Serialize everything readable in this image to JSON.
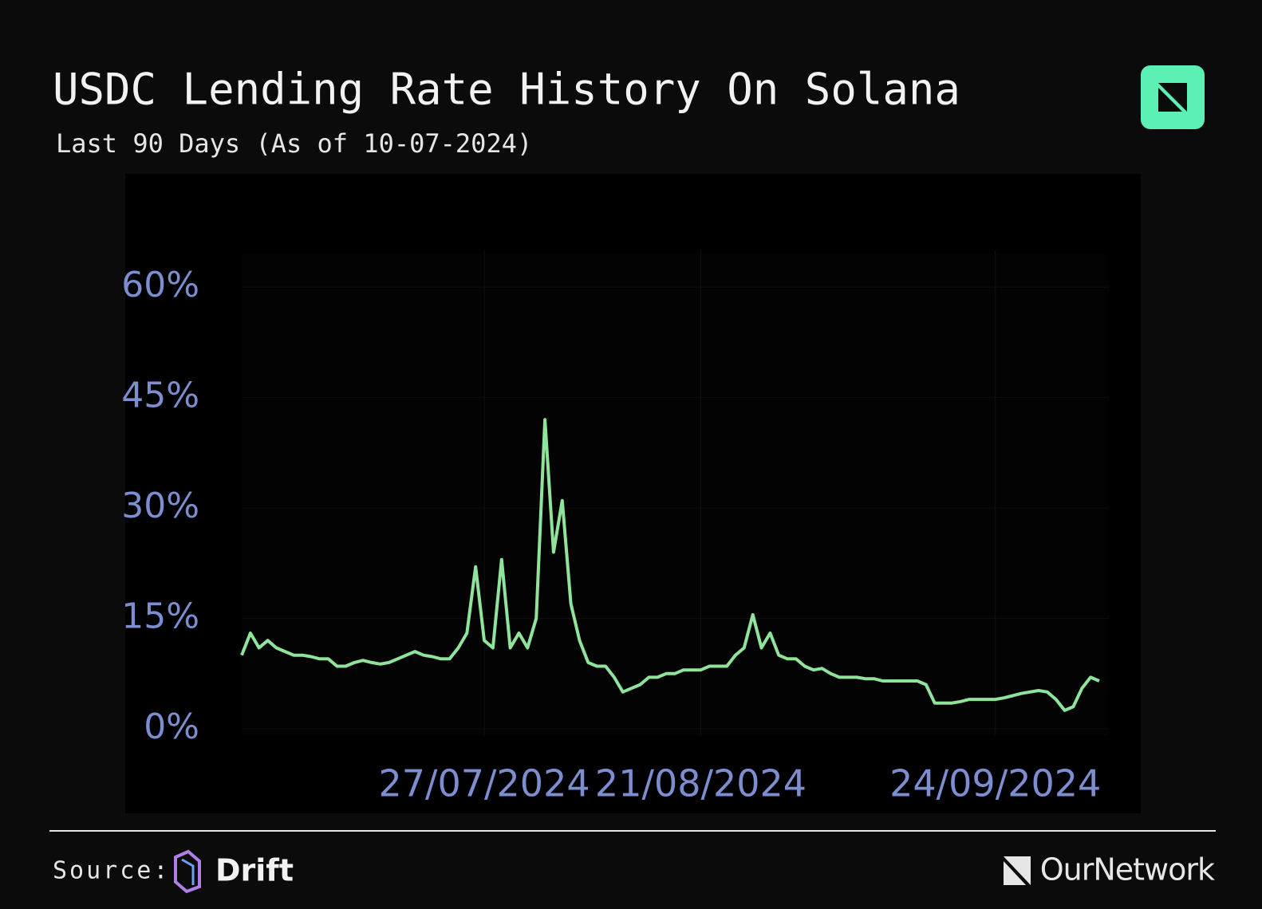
{
  "chart_data": {
    "type": "line",
    "title": "USDC Lending Rate History On Solana",
    "subtitle": "Last 90 Days (As of 10-07-2024)",
    "x": [
      "2024-06-29",
      "2024-06-30",
      "2024-07-01",
      "2024-07-02",
      "2024-07-03",
      "2024-07-04",
      "2024-07-05",
      "2024-07-06",
      "2024-07-07",
      "2024-07-08",
      "2024-07-09",
      "2024-07-10",
      "2024-07-11",
      "2024-07-12",
      "2024-07-13",
      "2024-07-14",
      "2024-07-15",
      "2024-07-16",
      "2024-07-17",
      "2024-07-18",
      "2024-07-19",
      "2024-07-20",
      "2024-07-21",
      "2024-07-22",
      "2024-07-23",
      "2024-07-24",
      "2024-07-25",
      "2024-07-26",
      "2024-07-27",
      "2024-07-28",
      "2024-07-29",
      "2024-07-30",
      "2024-07-31",
      "2024-08-01",
      "2024-08-02",
      "2024-08-03",
      "2024-08-04",
      "2024-08-05",
      "2024-08-06",
      "2024-08-07",
      "2024-08-08",
      "2024-08-09",
      "2024-08-10",
      "2024-08-11",
      "2024-08-12",
      "2024-08-13",
      "2024-08-14",
      "2024-08-15",
      "2024-08-16",
      "2024-08-17",
      "2024-08-18",
      "2024-08-19",
      "2024-08-20",
      "2024-08-21",
      "2024-08-22",
      "2024-08-23",
      "2024-08-24",
      "2024-08-25",
      "2024-08-26",
      "2024-08-27",
      "2024-08-28",
      "2024-08-29",
      "2024-08-30",
      "2024-08-31",
      "2024-09-01",
      "2024-09-02",
      "2024-09-03",
      "2024-09-04",
      "2024-09-05",
      "2024-09-06",
      "2024-09-07",
      "2024-09-08",
      "2024-09-09",
      "2024-09-10",
      "2024-09-11",
      "2024-09-12",
      "2024-09-13",
      "2024-09-14",
      "2024-09-15",
      "2024-09-16",
      "2024-09-17",
      "2024-09-18",
      "2024-09-19",
      "2024-09-20",
      "2024-09-21",
      "2024-09-22",
      "2024-09-23",
      "2024-09-24",
      "2024-09-25",
      "2024-09-26",
      "2024-09-27",
      "2024-09-28",
      "2024-09-29",
      "2024-09-30",
      "2024-10-01",
      "2024-10-02",
      "2024-10-03",
      "2024-10-04",
      "2024-10-05",
      "2024-10-06"
    ],
    "series": [
      {
        "name": "USDC Lending Rate",
        "color": "#8fe39a",
        "values": [
          10,
          13,
          11,
          12,
          11,
          10.5,
          10,
          10,
          9.8,
          9.5,
          9.5,
          8.5,
          8.5,
          9,
          9.3,
          9,
          8.8,
          9,
          9.5,
          10,
          10.5,
          10,
          9.8,
          9.5,
          9.5,
          11,
          13,
          22,
          12,
          11,
          23,
          11,
          13,
          11,
          15,
          42,
          24,
          31,
          17,
          12,
          9,
          8.5,
          8.5,
          7,
          5,
          5.5,
          6,
          7,
          7,
          7.5,
          7.5,
          8,
          8,
          8,
          8.5,
          8.5,
          8.5,
          10,
          11,
          15.5,
          11,
          13,
          10,
          9.5,
          9.5,
          8.5,
          8,
          8.2,
          7.5,
          7,
          7,
          7,
          6.8,
          6.8,
          6.5,
          6.5,
          6.5,
          6.5,
          6.5,
          6,
          3.5,
          3.5,
          3.5,
          3.7,
          4,
          4,
          4,
          4,
          4.2,
          4.5,
          4.8,
          5,
          5.2,
          5,
          4,
          2.5,
          3,
          5.5,
          7,
          6.5
        ]
      }
    ],
    "xlim": [
      "2024-06-29",
      "2024-10-06"
    ],
    "xticks": [
      {
        "value": "2024-07-27",
        "label": "27/07/2024"
      },
      {
        "value": "2024-08-21",
        "label": "21/08/2024"
      },
      {
        "value": "2024-09-24",
        "label": "24/09/2024"
      }
    ],
    "ylim": [
      0,
      65
    ],
    "yticks": [
      {
        "value": 0,
        "label": "0%"
      },
      {
        "value": 15,
        "label": "15%"
      },
      {
        "value": 30,
        "label": "30%"
      },
      {
        "value": 45,
        "label": "45%"
      },
      {
        "value": 60,
        "label": "60%"
      }
    ]
  },
  "footer": {
    "source_label": "Source:",
    "source": "Drift",
    "brand": "OurNetwork"
  }
}
